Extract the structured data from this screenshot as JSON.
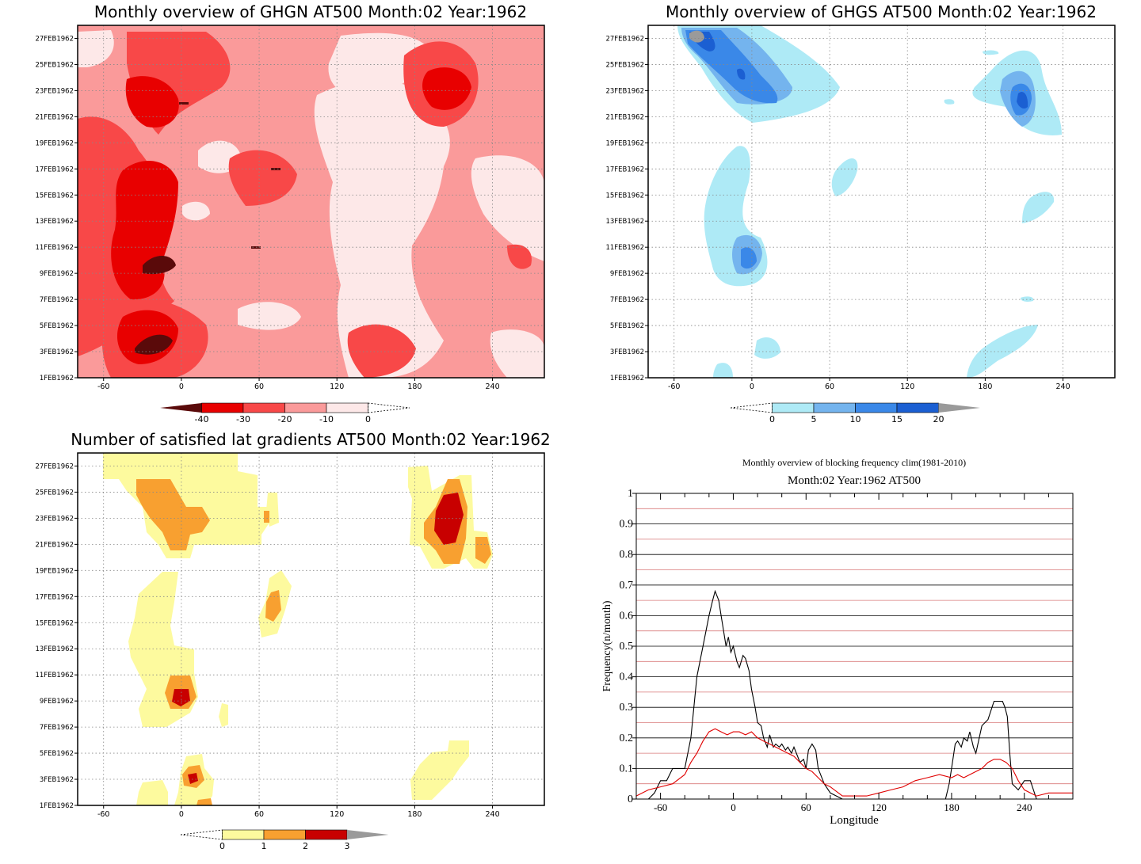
{
  "panels": [
    {
      "title": "Monthly overview of GHGN AT500 Month:02 Year:1962",
      "variable": "GHGN",
      "colorbar": {
        "levels": [
          -40,
          -30,
          -20,
          -10,
          0
        ],
        "labels": [
          "-40",
          "-30",
          "-20",
          "-10",
          "0"
        ],
        "colors": [
          "#5a0a0a",
          "#e80000",
          "#f84848",
          "#fa9a9a",
          "#fde8e8"
        ]
      }
    },
    {
      "title": "Monthly overview of GHGS AT500 Month:02 Year:1962",
      "variable": "GHGS",
      "colorbar": {
        "levels": [
          0,
          5,
          10,
          15,
          20
        ],
        "labels": [
          "0",
          "5",
          "10",
          "15",
          "20"
        ],
        "colors": [
          "#aeeaf6",
          "#74b4ee",
          "#3a88e8",
          "#1b5fd2",
          "#9a9a9a"
        ]
      }
    },
    {
      "title": "Number of satisfied lat gradients AT500 Month:02 Year:1962",
      "variable": "lat gradients",
      "colorbar": {
        "levels": [
          0,
          1,
          2,
          3
        ],
        "labels": [
          "0",
          "1",
          "2",
          "3"
        ],
        "colors": [
          "#fdfa9e",
          "#f8a030",
          "#c80000",
          "#9a9a9a"
        ]
      }
    }
  ],
  "time_axis": {
    "tick_labels": [
      "1FEB1962",
      "3FEB1962",
      "5FEB1962",
      "7FEB1962",
      "9FEB1962",
      "11FEB1962",
      "13FEB1962",
      "15FEB1962",
      "17FEB1962",
      "19FEB1962",
      "21FEB1962",
      "23FEB1962",
      "25FEB1962",
      "27FEB1962"
    ]
  },
  "lon_axis": {
    "tick_labels": [
      "-60",
      "0",
      "60",
      "120",
      "180",
      "240"
    ],
    "tick_values": [
      -60,
      0,
      60,
      120,
      180,
      240
    ],
    "range": [
      -80,
      280
    ]
  },
  "chart_data": [
    {
      "type": "heatmap",
      "title": "Monthly overview of GHGN AT500 Month:02 Year:1962",
      "x_range": [
        -80,
        280
      ],
      "y_ticks": [
        "1FEB1962",
        "3FEB1962",
        "5FEB1962",
        "7FEB1962",
        "9FEB1962",
        "11FEB1962",
        "13FEB1962",
        "15FEB1962",
        "17FEB1962",
        "19FEB1962",
        "21FEB1962",
        "23FEB1962",
        "25FEB1962",
        "27FEB1962"
      ],
      "levels": [
        -40,
        -30,
        -20,
        -10,
        0
      ],
      "minima": [
        {
          "lon": -20,
          "date": "10FEB1962",
          "value": -42
        },
        {
          "lon": -25,
          "date": "3FEB1962",
          "value": -42
        },
        {
          "lon": 205,
          "date": "23FEB1962",
          "value": -32
        },
        {
          "lon": 0,
          "date": "23FEB1962",
          "value": -35
        }
      ]
    },
    {
      "type": "heatmap",
      "title": "Monthly overview of GHGS AT500 Month:02 Year:1962",
      "x_range": [
        -80,
        280
      ],
      "levels": [
        0,
        5,
        10,
        15,
        20
      ],
      "maxima": [
        {
          "lon": -40,
          "date": "27FEB1962",
          "value": 21
        },
        {
          "lon": -10,
          "date": "24FEB1962",
          "value": 17
        },
        {
          "lon": 205,
          "date": "22FEB1962",
          "value": 16
        },
        {
          "lon": -10,
          "date": "10FEB1962",
          "value": 11
        }
      ]
    },
    {
      "type": "heatmap",
      "title": "Number of satisfied lat gradients AT500 Month:02 Year:1962",
      "x_range": [
        -80,
        280
      ],
      "levels": [
        0,
        1,
        2,
        3
      ],
      "maxima": [
        {
          "lon": 0,
          "date": "9FEB1962",
          "value": 3
        },
        {
          "lon": 210,
          "date": "23FEB1962",
          "value": 3
        },
        {
          "lon": 10,
          "date": "3FEB1962",
          "value": 3
        },
        {
          "lon": 0,
          "date": "23FEB1962",
          "value": 2
        },
        {
          "lon": 70,
          "date": "17FEB1962",
          "value": 2
        }
      ]
    },
    {
      "type": "line",
      "title": "Monthly overview of blocking frequency clim(1981-2010)",
      "subtitle": "Month:02 Year:1962  AT500",
      "xlabel": "Longitude",
      "ylabel": "Frequency(n/month)",
      "xlim": [
        -80,
        280
      ],
      "ylim": [
        0,
        1
      ],
      "x_ticks": [
        "-60",
        "0",
        "60",
        "120",
        "180",
        "240"
      ],
      "y_ticks": [
        "0",
        "0.1",
        "0.2",
        "0.3",
        "0.4",
        "0.5",
        "0.6",
        "0.7",
        "0.8",
        "0.9",
        "1"
      ],
      "series": [
        {
          "color": "#000000",
          "x": [
            -80,
            -75,
            -70,
            -65,
            -60,
            -55,
            -50,
            -45,
            -40,
            -35,
            -30,
            -25,
            -20,
            -17,
            -15,
            -12,
            -10,
            -8,
            -6,
            -4,
            -2,
            0,
            3,
            5,
            8,
            10,
            13,
            15,
            18,
            20,
            23,
            25,
            28,
            30,
            33,
            35,
            38,
            40,
            43,
            45,
            48,
            50,
            53,
            55,
            58,
            60,
            62,
            65,
            68,
            70,
            75,
            80,
            90,
            100,
            110,
            120,
            130,
            140,
            150,
            160,
            170,
            175,
            178,
            180,
            183,
            185,
            188,
            190,
            193,
            195,
            198,
            200,
            205,
            210,
            215,
            218,
            220,
            222,
            224,
            226,
            228,
            230,
            235,
            240,
            245,
            250,
            260,
            270,
            280
          ],
          "y": [
            0,
            0,
            0,
            0.02,
            0.06,
            0.06,
            0.1,
            0.1,
            0.1,
            0.2,
            0.4,
            0.5,
            0.6,
            0.65,
            0.68,
            0.65,
            0.6,
            0.55,
            0.5,
            0.53,
            0.48,
            0.5,
            0.45,
            0.43,
            0.47,
            0.46,
            0.42,
            0.36,
            0.3,
            0.25,
            0.24,
            0.2,
            0.17,
            0.21,
            0.17,
            0.18,
            0.17,
            0.18,
            0.16,
            0.17,
            0.15,
            0.17,
            0.14,
            0.12,
            0.13,
            0.1,
            0.16,
            0.18,
            0.16,
            0.1,
            0.05,
            0.02,
            0,
            0,
            0,
            0,
            0,
            0,
            0,
            0,
            0,
            0,
            0.05,
            0.1,
            0.18,
            0.19,
            0.17,
            0.2,
            0.19,
            0.22,
            0.17,
            0.15,
            0.24,
            0.26,
            0.32,
            0.32,
            0.32,
            0.32,
            0.3,
            0.27,
            0.15,
            0.05,
            0.03,
            0.06,
            0.06,
            0,
            0,
            0,
            0
          ]
        },
        {
          "color": "#e00000",
          "x": [
            -80,
            -70,
            -60,
            -50,
            -40,
            -35,
            -30,
            -25,
            -20,
            -15,
            -10,
            -5,
            0,
            5,
            10,
            15,
            20,
            25,
            30,
            35,
            40,
            45,
            50,
            55,
            60,
            65,
            70,
            75,
            80,
            90,
            100,
            110,
            120,
            130,
            140,
            150,
            160,
            170,
            180,
            185,
            190,
            200,
            205,
            210,
            215,
            220,
            225,
            230,
            235,
            240,
            245,
            250,
            260,
            270,
            280
          ],
          "y": [
            0.01,
            0.03,
            0.04,
            0.05,
            0.08,
            0.12,
            0.15,
            0.19,
            0.22,
            0.23,
            0.22,
            0.21,
            0.22,
            0.22,
            0.21,
            0.22,
            0.2,
            0.19,
            0.18,
            0.17,
            0.16,
            0.15,
            0.14,
            0.12,
            0.1,
            0.09,
            0.07,
            0.05,
            0.04,
            0.01,
            0.01,
            0.01,
            0.02,
            0.03,
            0.04,
            0.06,
            0.07,
            0.08,
            0.07,
            0.08,
            0.07,
            0.09,
            0.1,
            0.12,
            0.13,
            0.13,
            0.12,
            0.1,
            0.06,
            0.03,
            0.02,
            0.01,
            0.02,
            0.02,
            0.02
          ]
        }
      ]
    }
  ]
}
